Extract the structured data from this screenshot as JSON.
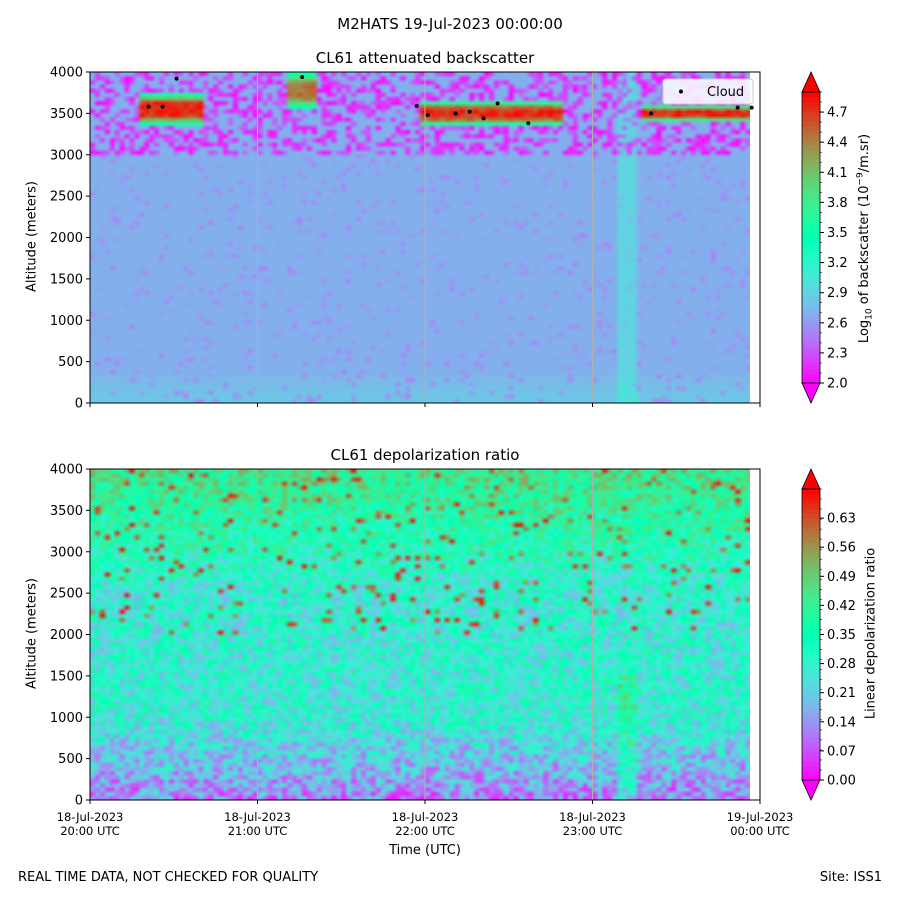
{
  "figure": {
    "suptitle": "M2HATS 19-Jul-2023 00:00:00",
    "xlabel": "Time (UTC)",
    "footer_left": "REAL TIME DATA, NOT CHECKED FOR QUALITY",
    "footer_right": "Site: ISS1"
  },
  "colors": {
    "colormap": "rainbow",
    "cloud_marker": "#000000",
    "grid": "#b0b0b0"
  },
  "chart_data": [
    {
      "type": "heatmap",
      "title": "CL61 attenuated backscatter",
      "ylabel": "Altitude (meters)",
      "ylim": [
        0,
        4000
      ],
      "yticks": [
        0,
        500,
        1000,
        1500,
        2000,
        2500,
        3000,
        3500,
        4000
      ],
      "xlim": [
        "18-Jul-2023 20:00 UTC",
        "19-Jul-2023 00:00 UTC"
      ],
      "xgrid": true,
      "colorbar": {
        "label": "Log10 of backscatter (10^-9/m.sr)",
        "label_parts": {
          "pre": "Log",
          "sub": "10",
          "mid": " of backscatter (10",
          "sup": "−9",
          "post": "/m.sr)"
        },
        "range": [
          2.0,
          4.9
        ],
        "ticks": [
          "2.0",
          "2.3",
          "2.6",
          "2.9",
          "3.2",
          "3.5",
          "3.8",
          "4.1",
          "4.4",
          "4.7"
        ]
      },
      "field_summary": {
        "background": 2.7,
        "near_surface": 2.85,
        "noise_above_m": 3000,
        "noise_values": [
          2.0,
          2.4
        ]
      },
      "cloud_layers": [
        {
          "start": "20:18",
          "end": "20:40",
          "base_m": 3350,
          "top_m": 3750,
          "peak": 4.9
        },
        {
          "start": "21:10",
          "end": "21:22",
          "base_m": 3550,
          "top_m": 4000,
          "peak": 4.6
        },
        {
          "start": "21:58",
          "end": "22:50",
          "base_m": 3350,
          "top_m": 3650,
          "peak": 4.9
        },
        {
          "start": "23:18",
          "end": "23:58",
          "base_m": 3400,
          "top_m": 3600,
          "peak": 4.9
        }
      ],
      "legend": {
        "entries": [
          "Cloud"
        ],
        "placement": "top-right"
      },
      "cloud_points": [
        {
          "t": "20:21",
          "alt": 3580
        },
        {
          "t": "20:26",
          "alt": 3580
        },
        {
          "t": "20:31",
          "alt": 3920
        },
        {
          "t": "21:16",
          "alt": 3940
        },
        {
          "t": "21:57",
          "alt": 3590
        },
        {
          "t": "22:01",
          "alt": 3480
        },
        {
          "t": "22:11",
          "alt": 3500
        },
        {
          "t": "22:16",
          "alt": 3520
        },
        {
          "t": "22:21",
          "alt": 3440
        },
        {
          "t": "22:26",
          "alt": 3620
        },
        {
          "t": "22:37",
          "alt": 3380
        },
        {
          "t": "23:21",
          "alt": 3500
        },
        {
          "t": "23:52",
          "alt": 3570
        },
        {
          "t": "23:57",
          "alt": 3570
        }
      ]
    },
    {
      "type": "heatmap",
      "title": "CL61 depolarization ratio",
      "ylabel": "Altitude (meters)",
      "ylim": [
        0,
        4000
      ],
      "yticks": [
        0,
        500,
        1000,
        1500,
        2000,
        2500,
        3000,
        3500,
        4000
      ],
      "xlim": [
        "18-Jul-2023 20:00 UTC",
        "19-Jul-2023 00:00 UTC"
      ],
      "xgrid": true,
      "xticks": [
        {
          "date": "18-Jul-2023",
          "time": "20:00 UTC"
        },
        {
          "date": "18-Jul-2023",
          "time": "21:00 UTC"
        },
        {
          "date": "18-Jul-2023",
          "time": "22:00 UTC"
        },
        {
          "date": "18-Jul-2023",
          "time": "23:00 UTC"
        },
        {
          "date": "19-Jul-2023",
          "time": "00:00 UTC"
        }
      ],
      "colorbar": {
        "label": "Linear depolarization ratio",
        "range": [
          0.0,
          0.7
        ],
        "ticks": [
          "0.00",
          "0.07",
          "0.14",
          "0.21",
          "0.28",
          "0.35",
          "0.42",
          "0.49",
          "0.56",
          "0.63"
        ]
      },
      "field_summary": {
        "near_surface": 0.12,
        "mid_level": 0.28,
        "upper_level": 0.45,
        "max": 0.7
      }
    }
  ]
}
